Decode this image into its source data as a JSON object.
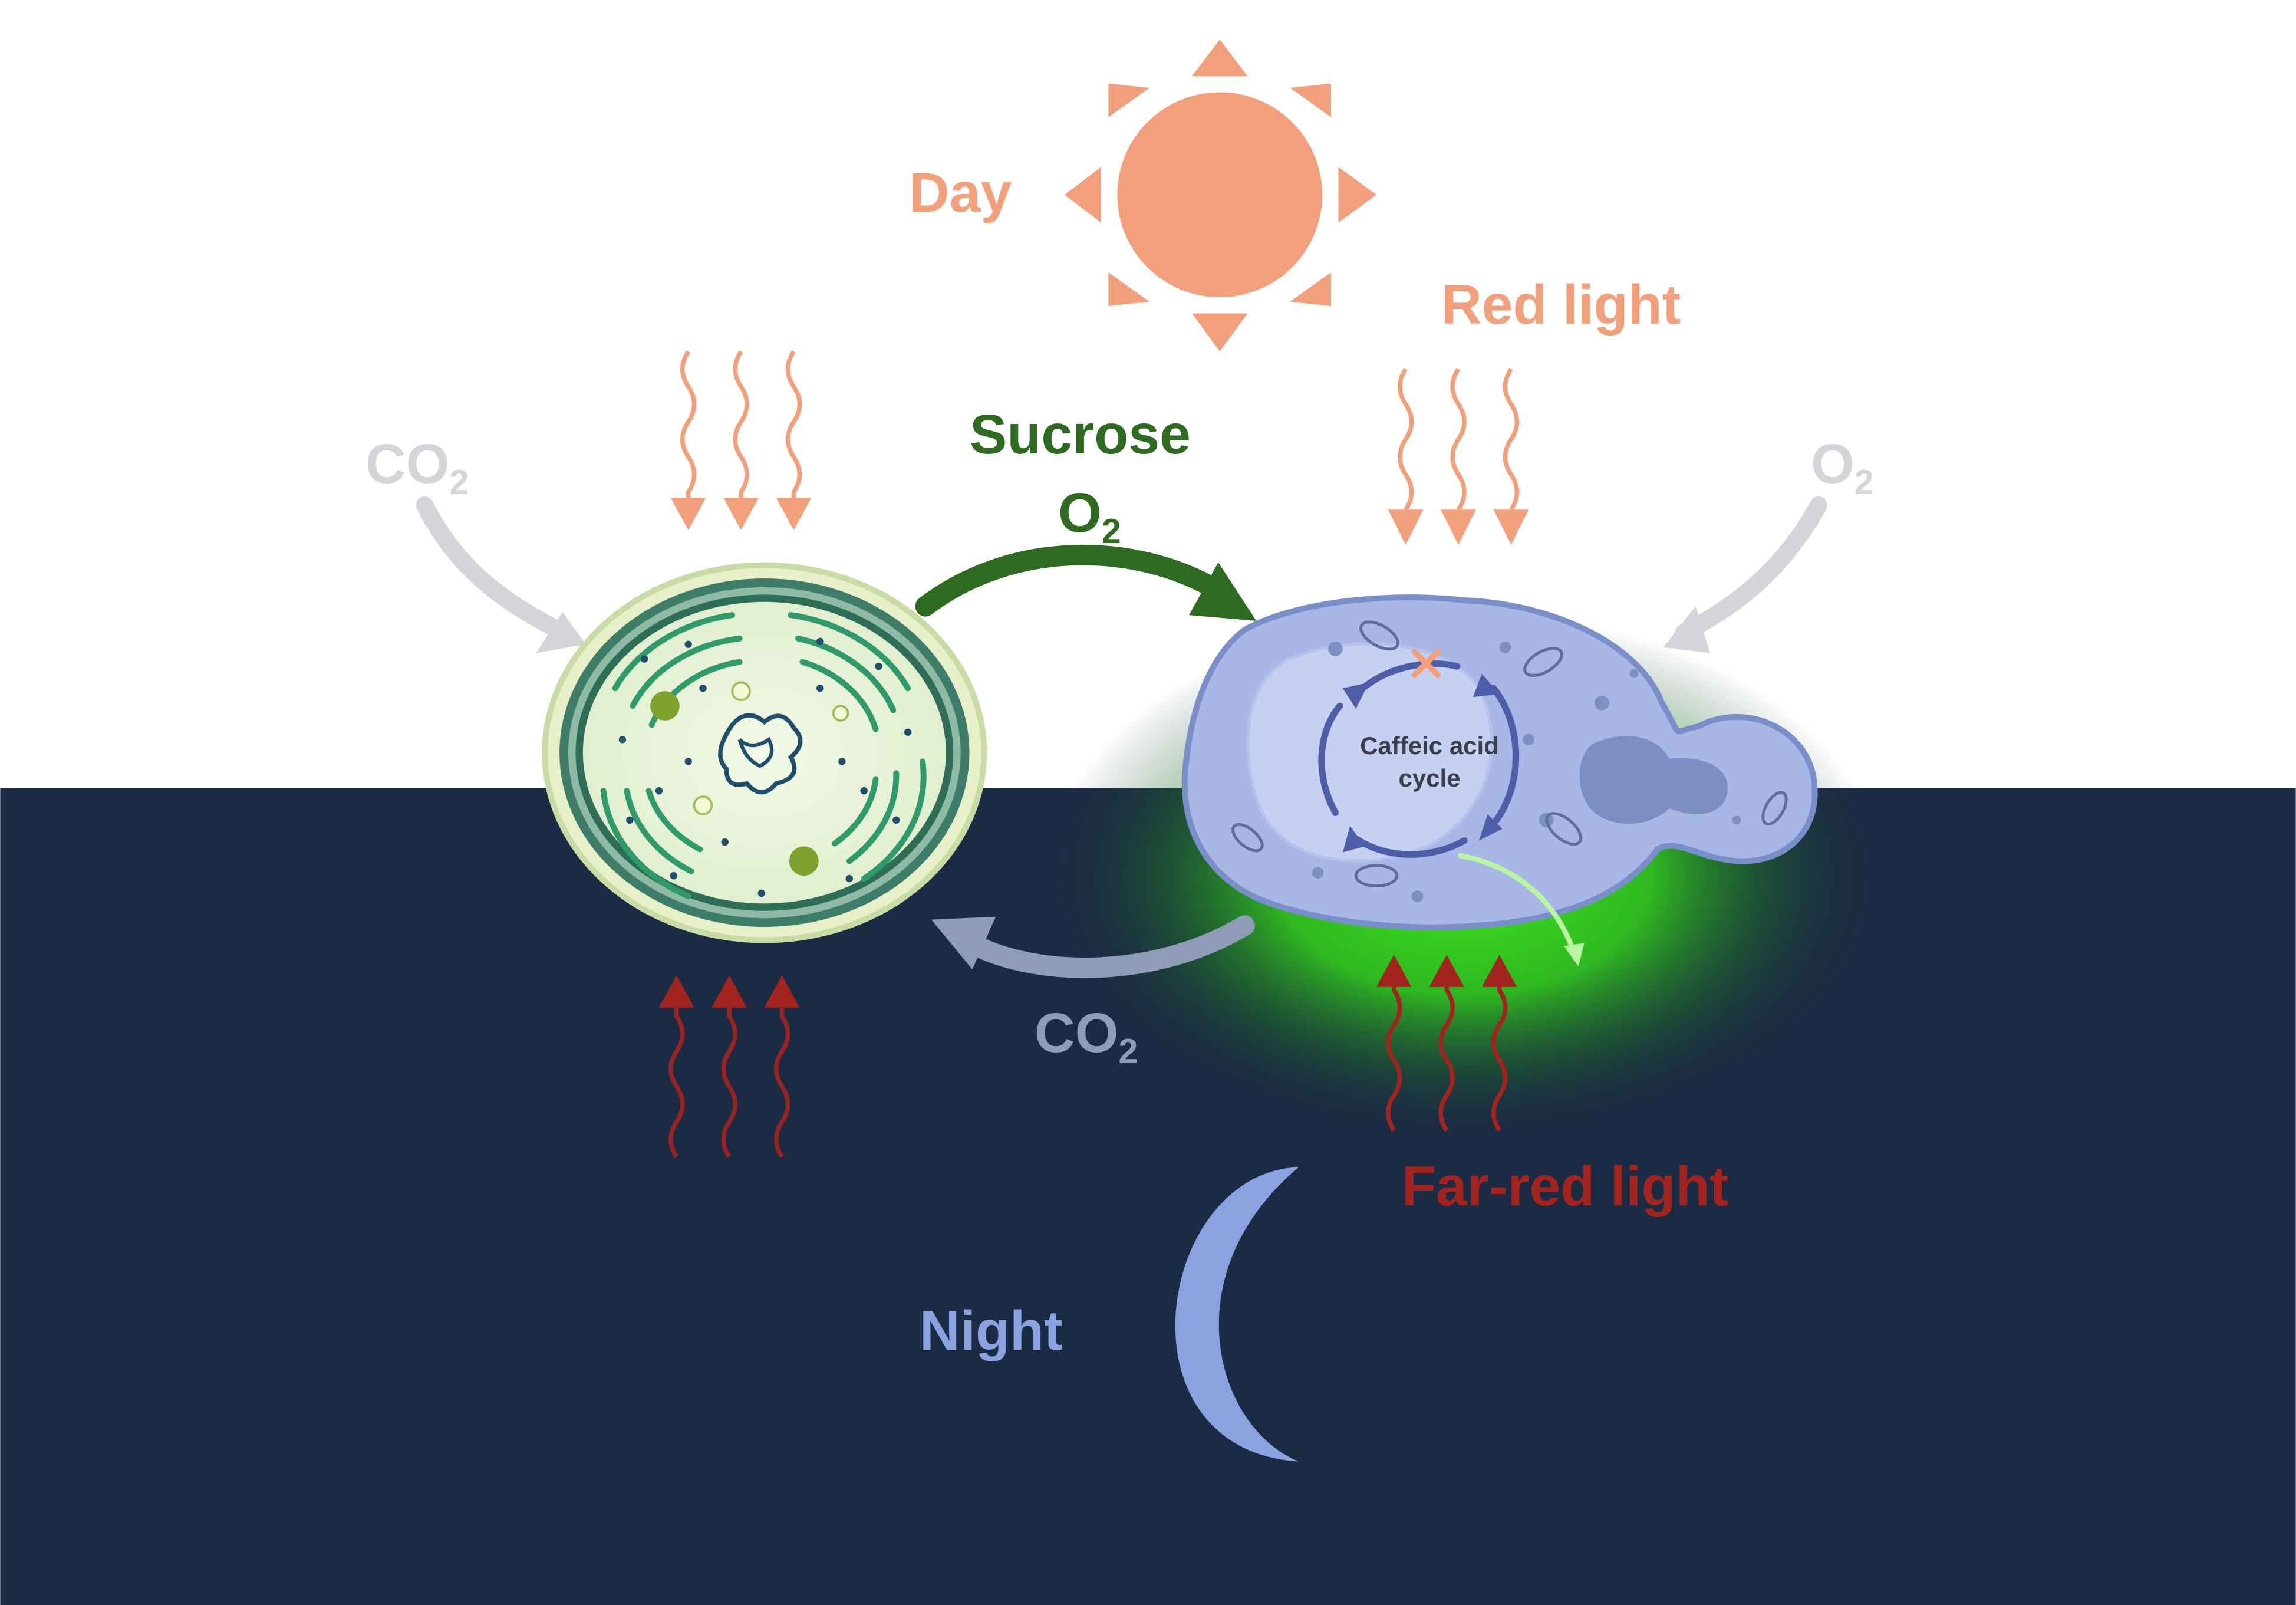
{
  "labels": {
    "day": "Day",
    "red_light": "Red light",
    "sucrose": "Sucrose",
    "o2_transfer": {
      "base": "O",
      "sub": "2"
    },
    "co2_left": {
      "base": "CO",
      "sub": "2"
    },
    "o2_right": {
      "base": "O",
      "sub": "2"
    },
    "co2_return": {
      "base": "CO",
      "sub": "2"
    },
    "far_red_light": "Far-red light",
    "night": "Night",
    "cycle_line1": "Caffeic acid",
    "cycle_line2": "cycle"
  },
  "colors": {
    "day_orange": "#F2A07B",
    "night_bg": "#1B2B43",
    "sucrose_green": "#2E6A1F",
    "gray_label": "#D3D5D8",
    "co2_return_blue": "#8F9CB8",
    "far_red": "#A3231F",
    "moon_blue": "#8AA2E0",
    "yeast_fill": "#A9B7E6",
    "yeast_outline": "#7A8FC9",
    "glow_green": "#3FE61E"
  },
  "icons": [
    "sun-icon",
    "moon-icon",
    "algae-cell-icon",
    "yeast-cell-icon",
    "wavy-arrow-icon"
  ]
}
